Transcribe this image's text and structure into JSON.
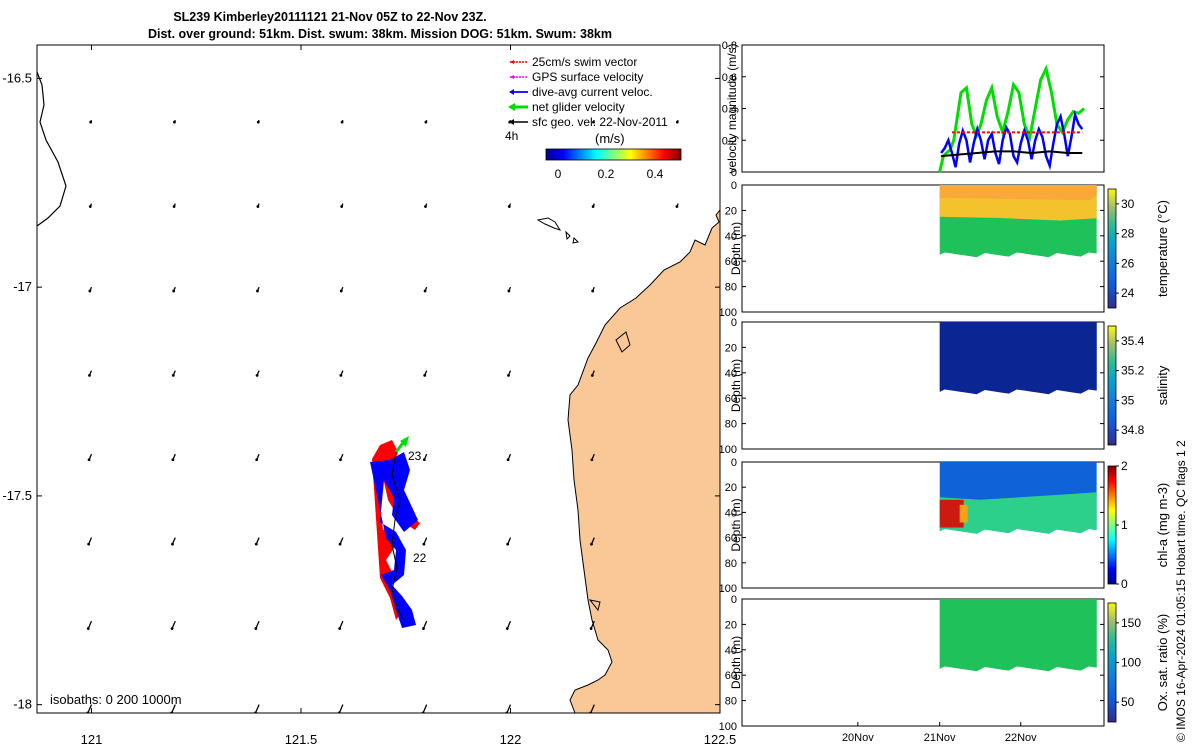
{
  "title_line1": "SL239 Kimberley20111121 21-Nov 05Z to 22-Nov 23Z.",
  "title_line2": "Dist. over ground: 51km. Dist. swum: 38km. Mission DOG: 51km. Swum: 38km",
  "footer_note": "© IMOS 16-Apr-2024 01:05:15 Hobart time. QC flags 1  2",
  "colors": {
    "land": "#f9c896",
    "red": "#ff0000",
    "blue": "#0000ff",
    "green": "#00dd00",
    "magenta": "#ff00ff",
    "black": "#000000"
  },
  "chart_data": [
    {
      "type": "map",
      "name": "glider-track-map",
      "xlim": [
        120.87,
        122.5
      ],
      "ylim": [
        -18.02,
        -16.42
      ],
      "x_ticks": [
        "121",
        "121.5",
        "122",
        "122.5"
      ],
      "x_tick_values": [
        121,
        121.5,
        122,
        122.5
      ],
      "y_ticks": [
        "-16.5",
        "-17",
        "-17.5",
        "-18"
      ],
      "y_tick_values": [
        -16.5,
        -17,
        -17.5,
        -18
      ],
      "legend": [
        {
          "label": "25cm/s swim vector",
          "color": "#ff0000"
        },
        {
          "label": "GPS surface velocity",
          "color": "#ff00ff"
        },
        {
          "label": "dive-avg current veloc.",
          "color": "#0000ff"
        },
        {
          "label": "net glider velocity",
          "color": "#00dd00"
        },
        {
          "label": "sfc geo. vel. 22-Nov-2011",
          "color": "#000000"
        }
      ],
      "scale_label": "4h",
      "colorbar_label": "(m/s)",
      "colorbar_ticks": [
        "0",
        "0.2",
        "0.4"
      ],
      "track_labels": [
        {
          "text": "23",
          "lon": 121.77,
          "lat": -17.41
        },
        {
          "text": "22",
          "lon": 121.77,
          "lat": -17.65
        }
      ],
      "isobaths_label": "isobaths: 0   200  1000m",
      "vector_grid_lons": [
        121.0,
        121.2,
        121.4,
        121.6,
        121.8,
        122.0,
        122.2,
        122.4
      ],
      "vector_grid_lats": [
        -16.6,
        -16.8,
        -17.0,
        -17.2,
        -17.4,
        -17.6,
        -17.8,
        -18.0
      ]
    },
    {
      "type": "line",
      "name": "velocity-magnitude",
      "ylabel": "velocity magnitude (m/s)",
      "ylim": [
        0,
        0.8
      ],
      "y_ticks": [
        "0",
        "0.2",
        "0.4",
        "0.6",
        "0.8"
      ],
      "y_tick_values": [
        0,
        0.2,
        0.4,
        0.6,
        0.8
      ],
      "xlim": [
        0,
        1
      ],
      "series": [
        {
          "name": "net glider velocity",
          "color": "#00dd00",
          "x": [
            0.546,
            0.556,
            0.565,
            0.575,
            0.585,
            0.595,
            0.605,
            0.62,
            0.635,
            0.648,
            0.66,
            0.675,
            0.69,
            0.705,
            0.72,
            0.735,
            0.75,
            0.765,
            0.78,
            0.795,
            0.81,
            0.825,
            0.84,
            0.855,
            0.87,
            0.885,
            0.9,
            0.915,
            0.93,
            0.945
          ],
          "values": [
            0.0,
            0.1,
            0.12,
            0.14,
            0.2,
            0.35,
            0.5,
            0.53,
            0.3,
            0.23,
            0.3,
            0.45,
            0.53,
            0.35,
            0.25,
            0.38,
            0.55,
            0.5,
            0.3,
            0.22,
            0.4,
            0.58,
            0.65,
            0.5,
            0.3,
            0.25,
            0.33,
            0.38,
            0.37,
            0.4
          ]
        },
        {
          "name": "dive-avg current veloc.",
          "color": "#0000ff",
          "x": [
            0.55,
            0.56,
            0.57,
            0.58,
            0.59,
            0.6,
            0.61,
            0.62,
            0.63,
            0.64,
            0.65,
            0.66,
            0.67,
            0.68,
            0.69,
            0.7,
            0.71,
            0.72,
            0.73,
            0.74,
            0.75,
            0.76,
            0.77,
            0.78,
            0.79,
            0.8,
            0.81,
            0.82,
            0.83,
            0.84,
            0.85,
            0.86,
            0.87,
            0.88,
            0.89,
            0.9,
            0.91,
            0.92,
            0.93,
            0.94
          ],
          "values": [
            0.12,
            0.15,
            0.2,
            0.12,
            0.03,
            0.18,
            0.26,
            0.2,
            0.06,
            0.18,
            0.27,
            0.2,
            0.08,
            0.2,
            0.24,
            0.12,
            0.05,
            0.2,
            0.28,
            0.24,
            0.1,
            0.06,
            0.18,
            0.26,
            0.2,
            0.08,
            0.2,
            0.27,
            0.22,
            0.1,
            0.04,
            0.18,
            0.3,
            0.35,
            0.24,
            0.1,
            0.22,
            0.36,
            0.3,
            0.27
          ]
        },
        {
          "name": "swim vector (dashed)",
          "color": "#ff0000",
          "x": [
            0.58,
            0.94
          ],
          "values": [
            0.25,
            0.25
          ]
        },
        {
          "name": "sfc geo. vel.",
          "color": "#000000",
          "x": [
            0.55,
            0.6,
            0.65,
            0.7,
            0.75,
            0.8,
            0.85,
            0.9,
            0.94
          ],
          "values": [
            0.1,
            0.11,
            0.12,
            0.13,
            0.13,
            0.12,
            0.13,
            0.12,
            0.12
          ]
        }
      ]
    },
    {
      "type": "heatmap",
      "name": "temperature-section",
      "ylabel": "Depth (m)",
      "colorbar_label": "temperature (°C)",
      "colorbar_ticks": [
        "30",
        "28",
        "26",
        "24"
      ],
      "colorbar_tick_values": [
        30,
        28,
        26,
        24
      ],
      "crange": [
        23,
        31
      ],
      "y_ticks": [
        "0",
        "20",
        "40",
        "60",
        "80",
        "100"
      ],
      "y_tick_values": [
        0,
        20,
        40,
        60,
        80,
        100
      ],
      "data_range_x": [
        0.546,
        0.98
      ],
      "data_depth_max": 55
    },
    {
      "type": "heatmap",
      "name": "salinity-section",
      "ylabel": "Depth (m)",
      "colorbar_label": "salinity",
      "colorbar_ticks": [
        "35.4",
        "35.2",
        "35",
        "34.8"
      ],
      "colorbar_tick_values": [
        35.4,
        35.2,
        35.0,
        34.8
      ],
      "crange": [
        34.7,
        35.5
      ],
      "y_ticks": [
        "0",
        "20",
        "40",
        "60",
        "80",
        "100"
      ],
      "y_tick_values": [
        0,
        20,
        40,
        60,
        80,
        100
      ],
      "data_range_x": [
        0.546,
        0.98
      ],
      "data_depth_max": 55
    },
    {
      "type": "heatmap",
      "name": "chlorophyll-section",
      "ylabel": "Depth (m)",
      "colorbar_label": "chl-a (mg m-3)",
      "colorbar_ticks": [
        "2",
        "1",
        "0"
      ],
      "colorbar_tick_values": [
        2,
        1,
        0
      ],
      "crange": [
        0,
        2
      ],
      "y_ticks": [
        "0",
        "20",
        "40",
        "60",
        "80",
        "100"
      ],
      "y_tick_values": [
        0,
        20,
        40,
        60,
        80,
        100
      ],
      "data_range_x": [
        0.546,
        0.98
      ],
      "data_depth_max": 55
    },
    {
      "type": "heatmap",
      "name": "oxygen-saturation-section",
      "ylabel": "Depth (m)",
      "colorbar_label": "Ox. sat. ratio (%)",
      "colorbar_ticks": [
        "150",
        "100",
        "50"
      ],
      "colorbar_tick_values": [
        150,
        100,
        50
      ],
      "crange": [
        25,
        175
      ],
      "y_ticks": [
        "0",
        "20",
        "40",
        "60",
        "80",
        "100"
      ],
      "y_tick_values": [
        0,
        20,
        40,
        60,
        80,
        100
      ],
      "x_ticks": [
        "20Nov",
        "21Nov",
        "22Nov"
      ],
      "x_tick_values": [
        0.32,
        0.546,
        0.77
      ],
      "data_range_x": [
        0.546,
        0.98
      ],
      "data_depth_max": 55
    }
  ]
}
